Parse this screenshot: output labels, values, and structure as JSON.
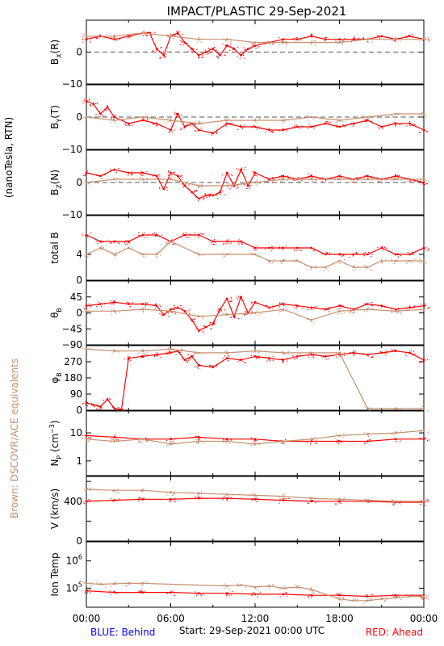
{
  "title": "IMPACT/PLASTIC   29-Sep-2021",
  "left_label_units": "(nanoTesla, RTN)",
  "left_label_brown": "Brown: DSCOVR/ACE equivalents",
  "footer": {
    "blue": "BLUE: Behind",
    "start": "Start: 29-Sep-2021 00:00 UTC",
    "red": "RED: Ahead"
  },
  "colors": {
    "red": "#ff0000",
    "brown": "#c8906e",
    "blue": "#0000ff",
    "axis": "#000000",
    "dash": "#555555"
  },
  "x_axis": {
    "min": 0,
    "max": 24,
    "ticks": [
      0,
      6,
      12,
      18,
      24
    ],
    "tick_labels": [
      "00:00",
      "06:00",
      "12:00",
      "18:00",
      "00:00"
    ]
  },
  "chart_data": [
    {
      "type": "scatter",
      "id": "bx",
      "ylabel": "B_X(R)",
      "ylim": [
        -10,
        10
      ],
      "ticks": [
        -10,
        0
      ],
      "tick_labels": [
        "−10",
        "0"
      ],
      "zero_line": true,
      "series": [
        {
          "color": "red",
          "x": [
            0,
            1,
            2,
            3,
            4,
            4.5,
            5,
            5.5,
            6,
            6.5,
            7,
            7.5,
            8,
            8.5,
            9,
            9.5,
            10,
            10.5,
            11,
            11.5,
            12,
            13,
            14,
            15,
            16,
            17,
            18,
            19,
            20,
            21,
            22,
            23,
            24
          ],
          "y": [
            4,
            5,
            4,
            5,
            6,
            6,
            1,
            -1,
            5,
            6,
            3,
            1,
            -1,
            0,
            1,
            -1,
            2,
            1,
            -1,
            1,
            2,
            3,
            4,
            4,
            5,
            4,
            4,
            4,
            4,
            5,
            4,
            5,
            4
          ]
        },
        {
          "color": "brown",
          "x": [
            0,
            2,
            4,
            6,
            8,
            10,
            12,
            14,
            16,
            18,
            20,
            22,
            24
          ],
          "y": [
            5,
            5,
            6,
            5,
            4,
            4,
            3,
            3,
            3,
            3,
            4,
            4,
            4
          ]
        }
      ]
    },
    {
      "type": "scatter",
      "id": "by",
      "ylabel": "B_Y(T)",
      "ylim": [
        -10,
        10
      ],
      "ticks": [
        -10,
        0
      ],
      "tick_labels": [
        "−10",
        "0"
      ],
      "zero_line": true,
      "series": [
        {
          "color": "red",
          "x": [
            0,
            0.5,
            1,
            1.5,
            2,
            3,
            4,
            5,
            6,
            6.5,
            7,
            7.5,
            8,
            9,
            10,
            11,
            12,
            13,
            14,
            15,
            16,
            17,
            18,
            19,
            20,
            21,
            22,
            23,
            24
          ],
          "y": [
            5,
            4,
            1,
            3,
            0,
            -2,
            -1,
            -2,
            -4,
            1,
            -3,
            -2,
            -4,
            -5,
            -2,
            -3,
            -3,
            -4,
            -4,
            -3,
            -3,
            -2,
            -3,
            -2,
            -1,
            -3,
            -2,
            -2,
            -4
          ]
        },
        {
          "color": "brown",
          "x": [
            0,
            2,
            4,
            6,
            8,
            10,
            12,
            14,
            16,
            18,
            20,
            22,
            24
          ],
          "y": [
            0,
            -1,
            0,
            -1,
            -2,
            -1,
            -1,
            -1,
            0,
            -1,
            0,
            1,
            1
          ]
        }
      ]
    },
    {
      "type": "scatter",
      "id": "bz",
      "ylabel": "B_Z(N)",
      "ylim": [
        -10,
        10
      ],
      "ticks": [
        -10,
        0
      ],
      "tick_labels": [
        "−10",
        "0"
      ],
      "zero_line": true,
      "series": [
        {
          "color": "red",
          "x": [
            0,
            1,
            2,
            3,
            4,
            5,
            5.5,
            6,
            6.5,
            7,
            7.5,
            8,
            8.5,
            9,
            9.5,
            10,
            10.5,
            11,
            11.5,
            12,
            13,
            14,
            15,
            16,
            17,
            18,
            19,
            20,
            21,
            22,
            23,
            24
          ],
          "y": [
            3,
            2,
            4,
            3,
            3,
            2,
            -2,
            3,
            2,
            -1,
            -3,
            -5,
            -4,
            -4,
            -3,
            3,
            -1,
            4,
            -1,
            3,
            1,
            2,
            1,
            2,
            1,
            2,
            1,
            2,
            1,
            2,
            1,
            0
          ]
        },
        {
          "color": "brown",
          "x": [
            0,
            2,
            4,
            6,
            8,
            10,
            12,
            14,
            16,
            18,
            20,
            22,
            24
          ],
          "y": [
            0,
            1,
            1,
            1,
            -1,
            -1,
            0,
            1,
            1,
            1,
            1,
            1,
            1
          ]
        }
      ]
    },
    {
      "type": "scatter",
      "id": "bt",
      "ylabel": "total B",
      "ylim": [
        0,
        10
      ],
      "ticks": [
        0,
        4
      ],
      "tick_labels": [
        "0",
        "4"
      ],
      "zero_line": false,
      "series": [
        {
          "color": "red",
          "x": [
            0,
            1,
            2,
            3,
            4,
            5,
            6,
            7,
            8,
            9,
            10,
            11,
            12,
            13,
            14,
            15,
            16,
            17,
            18,
            19,
            20,
            21,
            22,
            23,
            24
          ],
          "y": [
            7,
            6,
            6,
            6,
            7,
            7,
            6,
            7,
            7,
            6,
            6,
            6,
            5,
            5,
            5,
            5,
            5,
            4,
            4,
            4,
            4,
            5,
            4,
            4,
            5
          ]
        },
        {
          "color": "brown",
          "x": [
            0,
            1,
            2,
            3,
            4,
            5,
            6,
            8,
            10,
            12,
            13,
            14,
            15,
            16,
            17,
            18,
            19,
            20,
            21,
            22,
            23,
            24
          ],
          "y": [
            4,
            5,
            4,
            5,
            4,
            4,
            6,
            4,
            4,
            4,
            3,
            3,
            3,
            2,
            2,
            3,
            2,
            2,
            3,
            3,
            3,
            3
          ]
        }
      ]
    },
    {
      "type": "scatter",
      "id": "theta",
      "ylabel": "θ_B",
      "ylim": [
        -90,
        90
      ],
      "ticks": [
        -90,
        -45,
        0,
        45
      ],
      "tick_labels": [
        "−90",
        "−45",
        "0",
        "45"
      ],
      "zero_line": false,
      "series": [
        {
          "color": "red",
          "x": [
            0,
            1,
            2,
            3,
            4,
            5,
            5.5,
            6,
            6.5,
            7,
            7.5,
            8,
            8.5,
            9,
            9.5,
            10,
            10.5,
            11,
            11.5,
            12,
            13,
            14,
            15,
            16,
            17,
            18,
            19,
            20,
            21,
            22,
            23,
            24
          ],
          "y": [
            20,
            25,
            30,
            25,
            25,
            20,
            -5,
            10,
            15,
            5,
            -20,
            -50,
            -40,
            -30,
            10,
            40,
            -10,
            45,
            0,
            30,
            15,
            25,
            20,
            15,
            10,
            20,
            10,
            25,
            20,
            10,
            15,
            20
          ]
        },
        {
          "color": "brown",
          "x": [
            0,
            2,
            4,
            6,
            8,
            10,
            12,
            14,
            16,
            18,
            20,
            22,
            24
          ],
          "y": [
            5,
            5,
            10,
            5,
            -10,
            -5,
            0,
            10,
            -20,
            5,
            10,
            5,
            10
          ]
        }
      ]
    },
    {
      "type": "scatter",
      "id": "phi",
      "ylabel": "φ_B",
      "ylim": [
        0,
        360
      ],
      "ticks": [
        0,
        90,
        180,
        270
      ],
      "tick_labels": [
        "0",
        "90",
        "180",
        "270"
      ],
      "zero_line": false,
      "series": [
        {
          "color": "red",
          "x": [
            0,
            0.5,
            1,
            1.5,
            2,
            2.5,
            3,
            4,
            5,
            6,
            6.5,
            7,
            7.5,
            8,
            9,
            10,
            11,
            12,
            13,
            14,
            15,
            16,
            17,
            18,
            19,
            20,
            21,
            22,
            23,
            24
          ],
          "y": [
            40,
            30,
            20,
            60,
            10,
            5,
            290,
            300,
            310,
            320,
            330,
            280,
            300,
            250,
            240,
            290,
            280,
            300,
            290,
            280,
            300,
            310,
            300,
            310,
            320,
            310,
            320,
            330,
            320,
            280
          ]
        },
        {
          "color": "brown",
          "x": [
            0,
            2,
            4,
            6,
            8,
            10,
            12,
            14,
            16,
            18,
            20,
            22,
            24
          ],
          "y": [
            340,
            330,
            330,
            340,
            320,
            320,
            330,
            320,
            320,
            320,
            10,
            10,
            10
          ]
        }
      ]
    },
    {
      "type": "scatter",
      "id": "np",
      "ylabel": "N_P (cm^-3)",
      "yscale": "log",
      "ylim": [
        0.3,
        60
      ],
      "ticks": [
        1,
        10
      ],
      "tick_labels": [
        "1",
        "10"
      ],
      "zero_line": false,
      "series": [
        {
          "color": "red",
          "x": [
            0,
            2,
            4,
            6,
            8,
            10,
            12,
            14,
            16,
            18,
            20,
            22,
            24
          ],
          "y": [
            8,
            7,
            6,
            6,
            7,
            6,
            6,
            5,
            5,
            5,
            5,
            6,
            6
          ]
        },
        {
          "color": "brown",
          "x": [
            0,
            2,
            4,
            6,
            8,
            10,
            12,
            14,
            16,
            18,
            20,
            22,
            24
          ],
          "y": [
            6,
            5,
            6,
            4,
            5,
            5,
            4,
            5,
            6,
            8,
            9,
            10,
            12
          ]
        }
      ]
    },
    {
      "type": "scatter",
      "id": "v",
      "ylabel": "V (km/s)",
      "ylim": [
        0,
        650
      ],
      "ticks": [
        0,
        200,
        400,
        600
      ],
      "tick_labels": [
        "0",
        "",
        "400",
        ""
      ],
      "zero_line": false,
      "series": [
        {
          "color": "red",
          "x": [
            0,
            2,
            4,
            6,
            8,
            10,
            12,
            14,
            16,
            18,
            20,
            22,
            24
          ],
          "y": [
            400,
            410,
            420,
            420,
            430,
            430,
            420,
            410,
            400,
            400,
            400,
            390,
            390
          ]
        },
        {
          "color": "brown",
          "x": [
            0,
            2,
            4,
            6,
            8,
            10,
            12,
            14,
            16,
            18,
            20,
            22,
            24
          ],
          "y": [
            520,
            510,
            510,
            490,
            480,
            470,
            460,
            450,
            430,
            420,
            410,
            400,
            400
          ]
        }
      ]
    },
    {
      "type": "scatter",
      "id": "temp",
      "ylabel": "Ion Temp",
      "yscale": "log",
      "ylim": [
        20000,
        5000000
      ],
      "ticks": [
        100000,
        1000000
      ],
      "tick_labels": [
        "10^5",
        "10^6"
      ],
      "zero_line": false,
      "series": [
        {
          "color": "red",
          "x": [
            0,
            2,
            4,
            6,
            8,
            10,
            12,
            14,
            16,
            18,
            20,
            22,
            24
          ],
          "y": [
            80000,
            70000,
            70000,
            70000,
            65000,
            65000,
            60000,
            60000,
            55000,
            55000,
            50000,
            55000,
            55000
          ]
        },
        {
          "color": "brown",
          "x": [
            0,
            1,
            2,
            3,
            4,
            10,
            11,
            12,
            13,
            14,
            15,
            16,
            18,
            19,
            20,
            21,
            22,
            23,
            24
          ],
          "y": [
            150000,
            140000,
            145000,
            150000,
            150000,
            120000,
            130000,
            110000,
            120000,
            100000,
            110000,
            90000,
            40000,
            35000,
            35000,
            40000,
            45000,
            50000,
            50000
          ]
        }
      ]
    }
  ]
}
